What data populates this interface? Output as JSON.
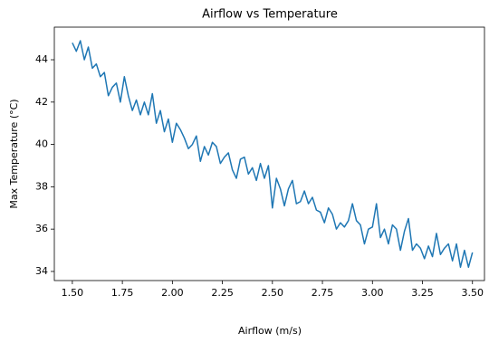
{
  "chart_data": {
    "type": "line",
    "title": "Airflow vs Temperature",
    "xlabel": "Airflow (m/s)",
    "ylabel": "Max Temperature (°C)",
    "x": [
      1.5,
      1.52,
      1.54,
      1.56,
      1.58,
      1.6,
      1.62,
      1.64,
      1.66,
      1.68,
      1.7,
      1.72,
      1.74,
      1.76,
      1.78,
      1.8,
      1.82,
      1.84,
      1.86,
      1.88,
      1.9,
      1.92,
      1.94,
      1.96,
      1.98,
      2.0,
      2.02,
      2.04,
      2.06,
      2.08,
      2.1,
      2.12,
      2.14,
      2.16,
      2.18,
      2.2,
      2.22,
      2.24,
      2.26,
      2.28,
      2.3,
      2.32,
      2.34,
      2.36,
      2.38,
      2.4,
      2.42,
      2.44,
      2.46,
      2.48,
      2.5,
      2.52,
      2.54,
      2.56,
      2.58,
      2.6,
      2.62,
      2.64,
      2.66,
      2.68,
      2.7,
      2.72,
      2.74,
      2.76,
      2.78,
      2.8,
      2.82,
      2.84,
      2.86,
      2.88,
      2.9,
      2.92,
      2.94,
      2.96,
      2.98,
      3.0,
      3.02,
      3.04,
      3.06,
      3.08,
      3.1,
      3.12,
      3.14,
      3.16,
      3.18,
      3.2,
      3.22,
      3.24,
      3.26,
      3.28,
      3.3,
      3.32,
      3.34,
      3.36,
      3.38,
      3.4,
      3.42,
      3.44,
      3.46,
      3.48,
      3.5
    ],
    "series": [
      {
        "color": "#1f77b4",
        "values": [
          44.8,
          44.4,
          44.9,
          44.0,
          44.6,
          43.6,
          43.8,
          43.2,
          43.4,
          42.3,
          42.7,
          42.9,
          42.0,
          43.2,
          42.3,
          41.6,
          42.1,
          41.4,
          42.0,
          41.4,
          42.4,
          41.0,
          41.6,
          40.6,
          41.2,
          40.1,
          41.0,
          40.7,
          40.3,
          39.8,
          40.0,
          40.4,
          39.2,
          39.9,
          39.5,
          40.1,
          39.9,
          39.1,
          39.4,
          39.6,
          38.8,
          38.4,
          39.3,
          39.4,
          38.6,
          38.9,
          38.3,
          39.1,
          38.4,
          39.0,
          37.0,
          38.4,
          37.9,
          37.1,
          37.9,
          38.3,
          37.2,
          37.3,
          37.8,
          37.2,
          37.5,
          36.9,
          36.8,
          36.3,
          37.0,
          36.7,
          36.0,
          36.3,
          36.1,
          36.4,
          37.2,
          36.4,
          36.2,
          35.3,
          36.0,
          36.1,
          37.2,
          35.6,
          36.0,
          35.3,
          36.2,
          36.0,
          35.0,
          35.9,
          36.5,
          35.0,
          35.3,
          35.1,
          34.6,
          35.2,
          34.7,
          35.8,
          34.8,
          35.1,
          35.3,
          34.5,
          35.3,
          34.2,
          35.0,
          34.2,
          34.9
        ]
      }
    ],
    "xlim": [
      1.41,
      3.56
    ],
    "ylim": [
      33.57,
      45.54
    ],
    "xticks": [
      {
        "value": 1.5,
        "label": "1.50"
      },
      {
        "value": 1.75,
        "label": "1.75"
      },
      {
        "value": 2.0,
        "label": "2.00"
      },
      {
        "value": 2.25,
        "label": "2.25"
      },
      {
        "value": 2.5,
        "label": "2.50"
      },
      {
        "value": 2.75,
        "label": "2.75"
      },
      {
        "value": 3.0,
        "label": "3.00"
      },
      {
        "value": 3.25,
        "label": "3.25"
      },
      {
        "value": 3.5,
        "label": "3.50"
      }
    ],
    "yticks": [
      34,
      36,
      38,
      40,
      42,
      44
    ]
  }
}
